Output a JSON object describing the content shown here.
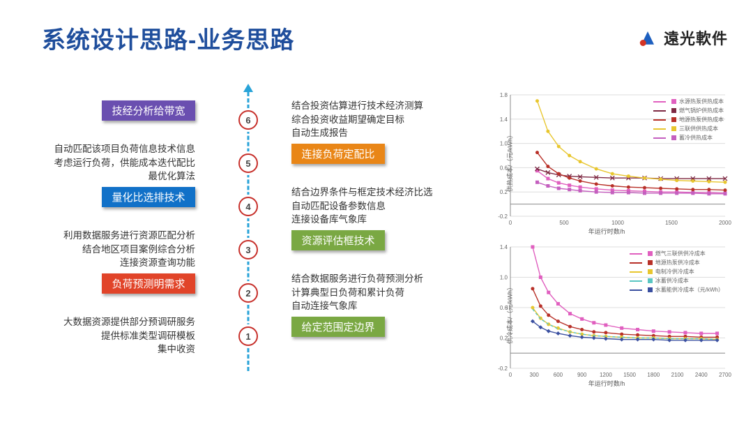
{
  "title": "系统设计思路-业务思路",
  "logo_text": "遠光軟件",
  "logo": {
    "blue": "#1d5fbf",
    "red": "#d43424"
  },
  "timeline": {
    "dash_color": "#28a3d8",
    "node_border": "#c7302b",
    "node_positions_pct": [
      94,
      76,
      58,
      40,
      22,
      6
    ],
    "arrow_top": true
  },
  "steps": [
    {
      "n": 1,
      "left_desc": "大数据资源提供部分预调研服务\n提供标准类型调研模板\n集中收资",
      "right_pill": "给定范围定边界",
      "right_pill_color": "#7aa843"
    },
    {
      "n": 2,
      "left_pill": "负荷预测明需求",
      "left_pill_color": "#e14429",
      "right_desc": "结合数据服务进行负荷预测分析\n计算典型日负荷和累计负荷\n自动连接气象库"
    },
    {
      "n": 3,
      "left_desc": "利用数据服务进行资源匹配分析\n结合地区项目案例综合分析\n连接资源查询功能",
      "right_pill": "资源评估框技术",
      "right_pill_color": "#7aa843"
    },
    {
      "n": 4,
      "left_pill": "量化比选排技术",
      "left_pill_color": "#1171c8",
      "right_desc": "结合边界条件与框定技术经济比选\n自动匹配设备参数信息\n连接设备库气象库"
    },
    {
      "n": 5,
      "left_desc": "自动匹配该项目负荷信息技术信息\n考虑运行负荷，供能成本迭代配比\n最优化算法",
      "right_pill": "连接负荷定配比",
      "right_pill_color": "#e98617"
    },
    {
      "n": 6,
      "left_pill": "技经分析给带宽",
      "left_pill_color": "#6a4fb0",
      "right_desc": "结合投资估算进行技术经济测算\n综合投资收益期望确定目标\n自动生成报告"
    }
  ],
  "chart_top": {
    "title": "",
    "xlim": [
      0,
      2000
    ],
    "ylim": [
      -0.2,
      1.8
    ],
    "xticks": [
      0,
      500,
      1000,
      1500,
      2000
    ],
    "yticks": [
      -0.2,
      0.2,
      0.6,
      1.0,
      1.4,
      1.8
    ],
    "grid_color": "#dddddd",
    "x_axis_label": "年运行时数/h",
    "y_axis_label": "供热成本/（元/kWh）",
    "series": [
      {
        "name": "水源热泵供热成本",
        "color": "#e05fbf",
        "marker": "square",
        "x": [
          250,
          350,
          450,
          550,
          650,
          800,
          950,
          1100,
          1250,
          1400,
          1550,
          1700,
          1850,
          2000
        ],
        "y": [
          0.55,
          0.42,
          0.35,
          0.31,
          0.28,
          0.25,
          0.23,
          0.22,
          0.21,
          0.2,
          0.2,
          0.19,
          0.19,
          0.18
        ]
      },
      {
        "name": "燃气锅炉供热成本",
        "color": "#7d2842",
        "marker": "x",
        "x": [
          250,
          350,
          450,
          550,
          650,
          800,
          950,
          1100,
          1250,
          1400,
          1550,
          1700,
          1850,
          2000
        ],
        "y": [
          0.58,
          0.52,
          0.48,
          0.46,
          0.45,
          0.44,
          0.43,
          0.43,
          0.43,
          0.42,
          0.42,
          0.42,
          0.42,
          0.42
        ]
      },
      {
        "name": "地源热泵供热成本",
        "color": "#b83028",
        "marker": "dot",
        "x": [
          250,
          350,
          450,
          550,
          650,
          800,
          950,
          1100,
          1250,
          1400,
          1550,
          1700,
          1850,
          2000
        ],
        "y": [
          0.85,
          0.62,
          0.5,
          0.43,
          0.38,
          0.33,
          0.3,
          0.28,
          0.27,
          0.26,
          0.25,
          0.24,
          0.24,
          0.23
        ]
      },
      {
        "name": "三联供供热成本",
        "color": "#e8c62e",
        "marker": "dot",
        "x": [
          250,
          350,
          450,
          550,
          650,
          800,
          950,
          1100,
          1250,
          1400,
          1550,
          1700,
          1850,
          2000
        ],
        "y": [
          1.7,
          1.2,
          0.95,
          0.8,
          0.7,
          0.58,
          0.5,
          0.46,
          0.43,
          0.41,
          0.39,
          0.38,
          0.37,
          0.36
        ]
      },
      {
        "name": "蓄冷供热成本",
        "color": "#c45fbf",
        "marker": "square",
        "x": [
          250,
          350,
          450,
          550,
          650,
          800,
          950,
          1100,
          1250,
          1400,
          1550,
          1700,
          1850,
          2000
        ],
        "y": [
          0.36,
          0.3,
          0.26,
          0.24,
          0.22,
          0.2,
          0.19,
          0.19,
          0.18,
          0.18,
          0.18,
          0.18,
          0.17,
          0.17
        ]
      }
    ]
  },
  "chart_bot": {
    "xlim": [
      0,
      2700
    ],
    "ylim": [
      -0.2,
      1.4
    ],
    "xticks": [
      0,
      300,
      600,
      900,
      1200,
      1500,
      1800,
      2100,
      2400,
      2700
    ],
    "yticks": [
      -0.2,
      0.2,
      0.6,
      1.0,
      1.4
    ],
    "grid_color": "#dddddd",
    "x_axis_label": "年运行时数/h",
    "y_axis_label": "供冷成本/（元/kWh）",
    "series": [
      {
        "name": "燃气三联供供冷成本",
        "color": "#e05fbf",
        "marker": "square",
        "x": [
          280,
          380,
          480,
          600,
          750,
          900,
          1050,
          1200,
          1400,
          1600,
          1800,
          2000,
          2200,
          2400,
          2600
        ],
        "y": [
          1.4,
          1.0,
          0.8,
          0.65,
          0.52,
          0.45,
          0.4,
          0.37,
          0.33,
          0.31,
          0.29,
          0.28,
          0.27,
          0.26,
          0.26
        ]
      },
      {
        "name": "地源热泵供冷成本",
        "color": "#b83028",
        "marker": "dot",
        "x": [
          280,
          380,
          480,
          600,
          750,
          900,
          1050,
          1200,
          1400,
          1600,
          1800,
          2000,
          2200,
          2400,
          2600
        ],
        "y": [
          0.85,
          0.62,
          0.5,
          0.42,
          0.35,
          0.31,
          0.28,
          0.27,
          0.25,
          0.24,
          0.23,
          0.22,
          0.22,
          0.21,
          0.21
        ]
      },
      {
        "name": "电制冷供冷成本",
        "color": "#e8c62e",
        "marker": "dot",
        "x": [
          280,
          380,
          480,
          600,
          750,
          900,
          1050,
          1200,
          1400,
          1600,
          1800,
          2000,
          2200,
          2400,
          2600
        ],
        "y": [
          0.6,
          0.46,
          0.38,
          0.33,
          0.28,
          0.25,
          0.23,
          0.22,
          0.21,
          0.2,
          0.2,
          0.19,
          0.19,
          0.19,
          0.18
        ]
      },
      {
        "name": "冰蓄供冷成本",
        "color": "#59c6c2",
        "marker": "dash",
        "x": [
          280,
          380,
          480,
          600,
          750,
          900,
          1050,
          1200,
          1400,
          1600,
          1800,
          2000,
          2200,
          2400,
          2600
        ],
        "y": [
          0.58,
          0.45,
          0.38,
          0.32,
          0.28,
          0.25,
          0.23,
          0.22,
          0.21,
          0.2,
          0.2,
          0.19,
          0.19,
          0.19,
          0.18
        ]
      },
      {
        "name": "水蓄能供冷成本（元/kWh）",
        "color": "#3a4fa0",
        "marker": "diamond",
        "x": [
          280,
          380,
          480,
          600,
          750,
          900,
          1050,
          1200,
          1400,
          1600,
          1800,
          2000,
          2200,
          2400,
          2600
        ],
        "y": [
          0.42,
          0.34,
          0.29,
          0.26,
          0.23,
          0.21,
          0.2,
          0.19,
          0.18,
          0.18,
          0.18,
          0.17,
          0.17,
          0.17,
          0.17
        ]
      }
    ]
  }
}
